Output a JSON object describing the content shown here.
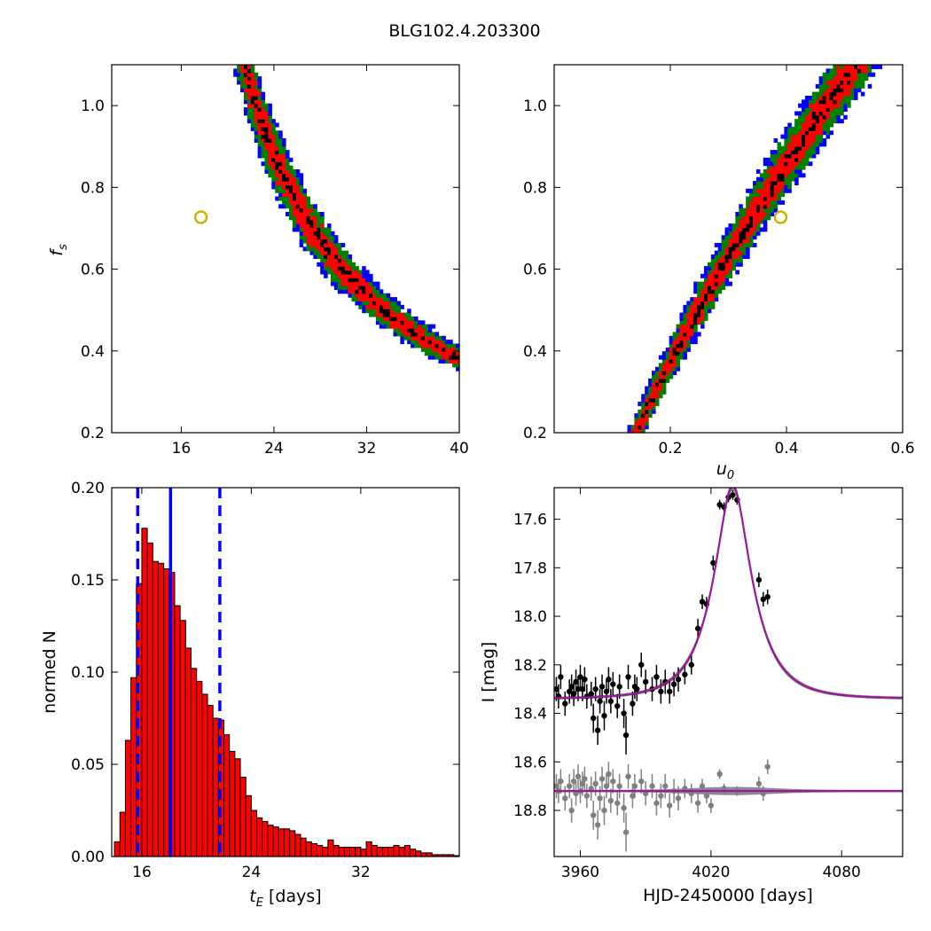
{
  "title": "BLG102.4.203300",
  "colors": {
    "blue": "#0000ff",
    "green": "#008000",
    "red": "#ff0000",
    "black": "#000000",
    "marker": "#c8b400",
    "model": "#9b179b",
    "residual": "#808080"
  },
  "chart_data": [
    {
      "id": "tE_fs",
      "type": "heatmap",
      "xlabel": "",
      "ylabel": "f_s",
      "xlim": [
        10,
        40
      ],
      "ylim": [
        0.2,
        1.1
      ],
      "xticks": [
        16,
        24,
        32,
        40
      ],
      "yticks": [
        0.2,
        0.4,
        0.6,
        0.8,
        1.0
      ],
      "levels": [
        "blue",
        "green",
        "red",
        "black"
      ],
      "best_fit": {
        "x": 17.7,
        "y": 0.727
      }
    },
    {
      "id": "u0_fs",
      "type": "heatmap",
      "xlabel": "u_0",
      "ylabel": "",
      "xlim": [
        0.0,
        0.6
      ],
      "ylim": [
        0.2,
        1.1
      ],
      "xticks": [
        0.2,
        0.4,
        0.6
      ],
      "yticks": [
        0.2,
        0.4,
        0.6,
        0.8,
        1.0
      ],
      "levels": [
        "blue",
        "green",
        "red",
        "black"
      ],
      "best_fit": {
        "x": 0.39,
        "y": 0.727
      }
    },
    {
      "id": "tE_hist",
      "type": "bar",
      "xlabel": "t_E [days]",
      "ylabel": "normed N",
      "xlim": [
        13.8,
        39.2
      ],
      "ylim": [
        0,
        0.2
      ],
      "xticks": [
        16,
        24,
        32
      ],
      "yticks": [
        0.0,
        0.05,
        0.1,
        0.15,
        0.2
      ],
      "bin_start": 14.0,
      "bin_width": 0.4,
      "values": [
        0.008,
        0.024,
        0.063,
        0.097,
        0.148,
        0.178,
        0.17,
        0.16,
        0.159,
        0.156,
        0.154,
        0.136,
        0.128,
        0.113,
        0.102,
        0.095,
        0.088,
        0.082,
        0.075,
        0.074,
        0.066,
        0.057,
        0.053,
        0.043,
        0.033,
        0.025,
        0.021,
        0.019,
        0.017,
        0.016,
        0.015,
        0.015,
        0.014,
        0.012,
        0.01,
        0.008,
        0.007,
        0.006,
        0.005,
        0.009,
        0.006,
        0.005,
        0.005,
        0.005,
        0.005,
        0.004,
        0.008,
        0.006,
        0.005,
        0.005,
        0.005,
        0.006,
        0.005,
        0.006,
        0.004,
        0.003,
        0.002,
        0.002,
        0.001,
        0.001,
        0.001,
        0.001,
        0.0005
      ],
      "median": 18.1,
      "lower": 15.7,
      "upper": 21.7
    },
    {
      "id": "lightcurve",
      "type": "scatter",
      "xlabel": "HJD-2450000 [days]",
      "ylabel": "I [mag]",
      "xlim": [
        3948,
        4108
      ],
      "ylim": [
        18.99,
        17.47
      ],
      "xticks": [
        3960,
        4020,
        4080
      ],
      "yticks": [
        17.6,
        17.8,
        18.0,
        18.2,
        18.4,
        18.6,
        18.8
      ],
      "model": {
        "t0": 4030,
        "u0": 0.39,
        "tE": 17.7,
        "fs": 0.727,
        "baseline": 18.34,
        "residual_level": 18.72
      },
      "data": [
        {
          "x": 3949,
          "y": 18.3,
          "e": 0.05
        },
        {
          "x": 3950,
          "y": 18.33,
          "e": 0.05
        },
        {
          "x": 3951,
          "y": 18.25,
          "e": 0.05
        },
        {
          "x": 3953,
          "y": 18.36,
          "e": 0.05
        },
        {
          "x": 3955,
          "y": 18.31,
          "e": 0.05
        },
        {
          "x": 3956,
          "y": 18.29,
          "e": 0.05
        },
        {
          "x": 3957,
          "y": 18.32,
          "e": 0.05
        },
        {
          "x": 3958,
          "y": 18.27,
          "e": 0.05
        },
        {
          "x": 3959,
          "y": 18.3,
          "e": 0.05
        },
        {
          "x": 3960,
          "y": 18.25,
          "e": 0.05
        },
        {
          "x": 3961,
          "y": 18.3,
          "e": 0.05
        },
        {
          "x": 3962,
          "y": 18.26,
          "e": 0.05
        },
        {
          "x": 3963,
          "y": 18.33,
          "e": 0.05
        },
        {
          "x": 3965,
          "y": 18.32,
          "e": 0.05
        },
        {
          "x": 3966,
          "y": 18.42,
          "e": 0.06
        },
        {
          "x": 3967,
          "y": 18.3,
          "e": 0.05
        },
        {
          "x": 3968,
          "y": 18.47,
          "e": 0.06
        },
        {
          "x": 3969,
          "y": 18.35,
          "e": 0.05
        },
        {
          "x": 3970,
          "y": 18.29,
          "e": 0.05
        },
        {
          "x": 3971,
          "y": 18.41,
          "e": 0.06
        },
        {
          "x": 3972,
          "y": 18.31,
          "e": 0.05
        },
        {
          "x": 3973,
          "y": 18.26,
          "e": 0.05
        },
        {
          "x": 3974,
          "y": 18.35,
          "e": 0.05
        },
        {
          "x": 3975,
          "y": 18.28,
          "e": 0.05
        },
        {
          "x": 3977,
          "y": 18.37,
          "e": 0.05
        },
        {
          "x": 3978,
          "y": 18.29,
          "e": 0.05
        },
        {
          "x": 3980,
          "y": 18.4,
          "e": 0.06
        },
        {
          "x": 3981,
          "y": 18.49,
          "e": 0.08
        },
        {
          "x": 3982,
          "y": 18.25,
          "e": 0.05
        },
        {
          "x": 3984,
          "y": 18.36,
          "e": 0.05
        },
        {
          "x": 3985,
          "y": 18.29,
          "e": 0.05
        },
        {
          "x": 3986,
          "y": 18.3,
          "e": 0.05
        },
        {
          "x": 3988,
          "y": 18.2,
          "e": 0.05
        },
        {
          "x": 3990,
          "y": 18.27,
          "e": 0.05
        },
        {
          "x": 3993,
          "y": 18.3,
          "e": 0.05
        },
        {
          "x": 3995,
          "y": 18.25,
          "e": 0.05
        },
        {
          "x": 3997,
          "y": 18.31,
          "e": 0.05
        },
        {
          "x": 3999,
          "y": 18.27,
          "e": 0.05
        },
        {
          "x": 4001,
          "y": 18.31,
          "e": 0.05
        },
        {
          "x": 4003,
          "y": 18.28,
          "e": 0.05
        },
        {
          "x": 4005,
          "y": 18.26,
          "e": 0.05
        },
        {
          "x": 4008,
          "y": 18.24,
          "e": 0.04
        },
        {
          "x": 4011,
          "y": 18.2,
          "e": 0.04
        },
        {
          "x": 4014,
          "y": 18.05,
          "e": 0.04
        },
        {
          "x": 4016,
          "y": 17.94,
          "e": 0.03
        },
        {
          "x": 4018,
          "y": 17.95,
          "e": 0.03
        },
        {
          "x": 4021,
          "y": 17.78,
          "e": 0.03
        },
        {
          "x": 4024,
          "y": 17.54,
          "e": 0.02
        },
        {
          "x": 4026,
          "y": 17.55,
          "e": 0.02
        },
        {
          "x": 4028,
          "y": 17.51,
          "e": 0.02
        },
        {
          "x": 4030,
          "y": 17.5,
          "e": 0.02
        },
        {
          "x": 4032,
          "y": 17.52,
          "e": 0.02
        },
        {
          "x": 4042,
          "y": 17.85,
          "e": 0.03
        },
        {
          "x": 4044,
          "y": 17.93,
          "e": 0.03
        },
        {
          "x": 4046,
          "y": 17.92,
          "e": 0.03
        }
      ],
      "residuals": [
        {
          "x": 3949,
          "y": 18.7,
          "e": 0.05
        },
        {
          "x": 3950,
          "y": 18.72,
          "e": 0.05
        },
        {
          "x": 3951,
          "y": 18.68,
          "e": 0.05
        },
        {
          "x": 3953,
          "y": 18.75,
          "e": 0.05
        },
        {
          "x": 3955,
          "y": 18.7,
          "e": 0.05
        },
        {
          "x": 3956,
          "y": 18.8,
          "e": 0.05
        },
        {
          "x": 3957,
          "y": 18.68,
          "e": 0.05
        },
        {
          "x": 3958,
          "y": 18.73,
          "e": 0.05
        },
        {
          "x": 3959,
          "y": 18.66,
          "e": 0.05
        },
        {
          "x": 3960,
          "y": 18.72,
          "e": 0.05
        },
        {
          "x": 3961,
          "y": 18.69,
          "e": 0.05
        },
        {
          "x": 3962,
          "y": 18.67,
          "e": 0.05
        },
        {
          "x": 3963,
          "y": 18.74,
          "e": 0.05
        },
        {
          "x": 3965,
          "y": 18.71,
          "e": 0.05
        },
        {
          "x": 3966,
          "y": 18.82,
          "e": 0.06
        },
        {
          "x": 3967,
          "y": 18.69,
          "e": 0.05
        },
        {
          "x": 3968,
          "y": 18.86,
          "e": 0.06
        },
        {
          "x": 3969,
          "y": 18.75,
          "e": 0.05
        },
        {
          "x": 3970,
          "y": 18.67,
          "e": 0.05
        },
        {
          "x": 3971,
          "y": 18.8,
          "e": 0.06
        },
        {
          "x": 3972,
          "y": 18.7,
          "e": 0.05
        },
        {
          "x": 3973,
          "y": 18.65,
          "e": 0.05
        },
        {
          "x": 3974,
          "y": 18.76,
          "e": 0.05
        },
        {
          "x": 3975,
          "y": 18.68,
          "e": 0.05
        },
        {
          "x": 3977,
          "y": 18.77,
          "e": 0.05
        },
        {
          "x": 3978,
          "y": 18.7,
          "e": 0.05
        },
        {
          "x": 3980,
          "y": 18.79,
          "e": 0.06
        },
        {
          "x": 3981,
          "y": 18.89,
          "e": 0.08
        },
        {
          "x": 3982,
          "y": 18.66,
          "e": 0.05
        },
        {
          "x": 3984,
          "y": 18.74,
          "e": 0.05
        },
        {
          "x": 3985,
          "y": 18.7,
          "e": 0.05
        },
        {
          "x": 3988,
          "y": 18.68,
          "e": 0.05
        },
        {
          "x": 3990,
          "y": 18.73,
          "e": 0.05
        },
        {
          "x": 3993,
          "y": 18.7,
          "e": 0.05
        },
        {
          "x": 3995,
          "y": 18.77,
          "e": 0.05
        },
        {
          "x": 3997,
          "y": 18.74,
          "e": 0.05
        },
        {
          "x": 3999,
          "y": 18.7,
          "e": 0.05
        },
        {
          "x": 4001,
          "y": 18.78,
          "e": 0.05
        },
        {
          "x": 4003,
          "y": 18.72,
          "e": 0.05
        },
        {
          "x": 4005,
          "y": 18.75,
          "e": 0.05
        },
        {
          "x": 4008,
          "y": 18.71,
          "e": 0.04
        },
        {
          "x": 4011,
          "y": 18.73,
          "e": 0.04
        },
        {
          "x": 4014,
          "y": 18.77,
          "e": 0.04
        },
        {
          "x": 4016,
          "y": 18.7,
          "e": 0.03
        },
        {
          "x": 4018,
          "y": 18.74,
          "e": 0.03
        },
        {
          "x": 4020,
          "y": 18.78,
          "e": 0.03
        },
        {
          "x": 4024,
          "y": 18.65,
          "e": 0.02
        },
        {
          "x": 4026,
          "y": 18.71,
          "e": 0.02
        },
        {
          "x": 4032,
          "y": 18.72,
          "e": 0.02
        },
        {
          "x": 4042,
          "y": 18.69,
          "e": 0.03
        },
        {
          "x": 4044,
          "y": 18.73,
          "e": 0.03
        },
        {
          "x": 4046,
          "y": 18.62,
          "e": 0.03
        }
      ]
    }
  ]
}
